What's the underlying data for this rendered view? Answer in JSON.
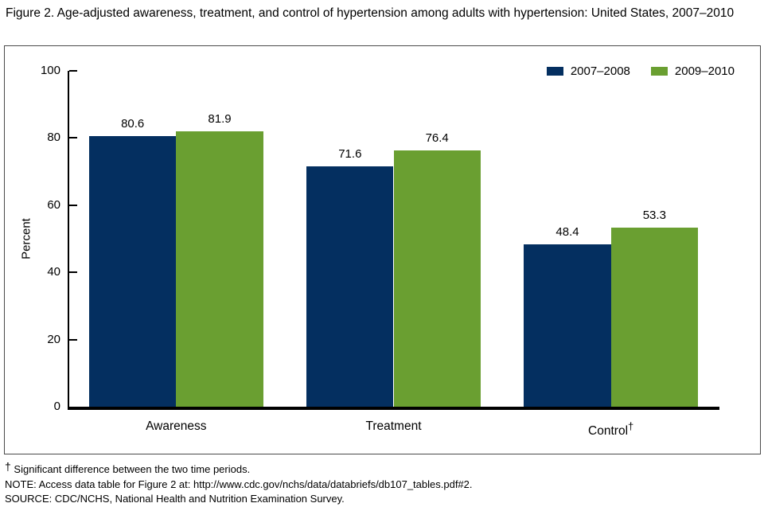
{
  "title": "Figure 2. Age-adjusted awareness, treatment, and control of hypertension among adults with hypertension: United States, 2007–2010",
  "chart_data": {
    "type": "bar",
    "categories": [
      "Awareness",
      "Treatment",
      "Control"
    ],
    "category_sups": [
      "",
      "",
      "†"
    ],
    "series": [
      {
        "name": "2007–2008",
        "color": "#042f60",
        "values": [
          80.6,
          71.6,
          48.4
        ]
      },
      {
        "name": "2009–2010",
        "color": "#6a9f31",
        "values": [
          81.9,
          76.4,
          53.3
        ]
      }
    ],
    "ylabel": "Percent",
    "xlabel": "",
    "ylim": [
      0,
      100
    ],
    "yticks": [
      0,
      20,
      40,
      60,
      80,
      100
    ],
    "grid": false,
    "legend_position": "top-right",
    "axis_color": "#000000"
  },
  "footnotes": {
    "dagger_symbol": "†",
    "dagger_text": "Significant difference between the two time periods.",
    "note": "NOTE: Access data table for Figure 2 at: http://www.cdc.gov/nchs/data/databriefs/db107_tables.pdf#2.",
    "source": "SOURCE: CDC/NCHS, National Health and Nutrition Examination Survey."
  }
}
